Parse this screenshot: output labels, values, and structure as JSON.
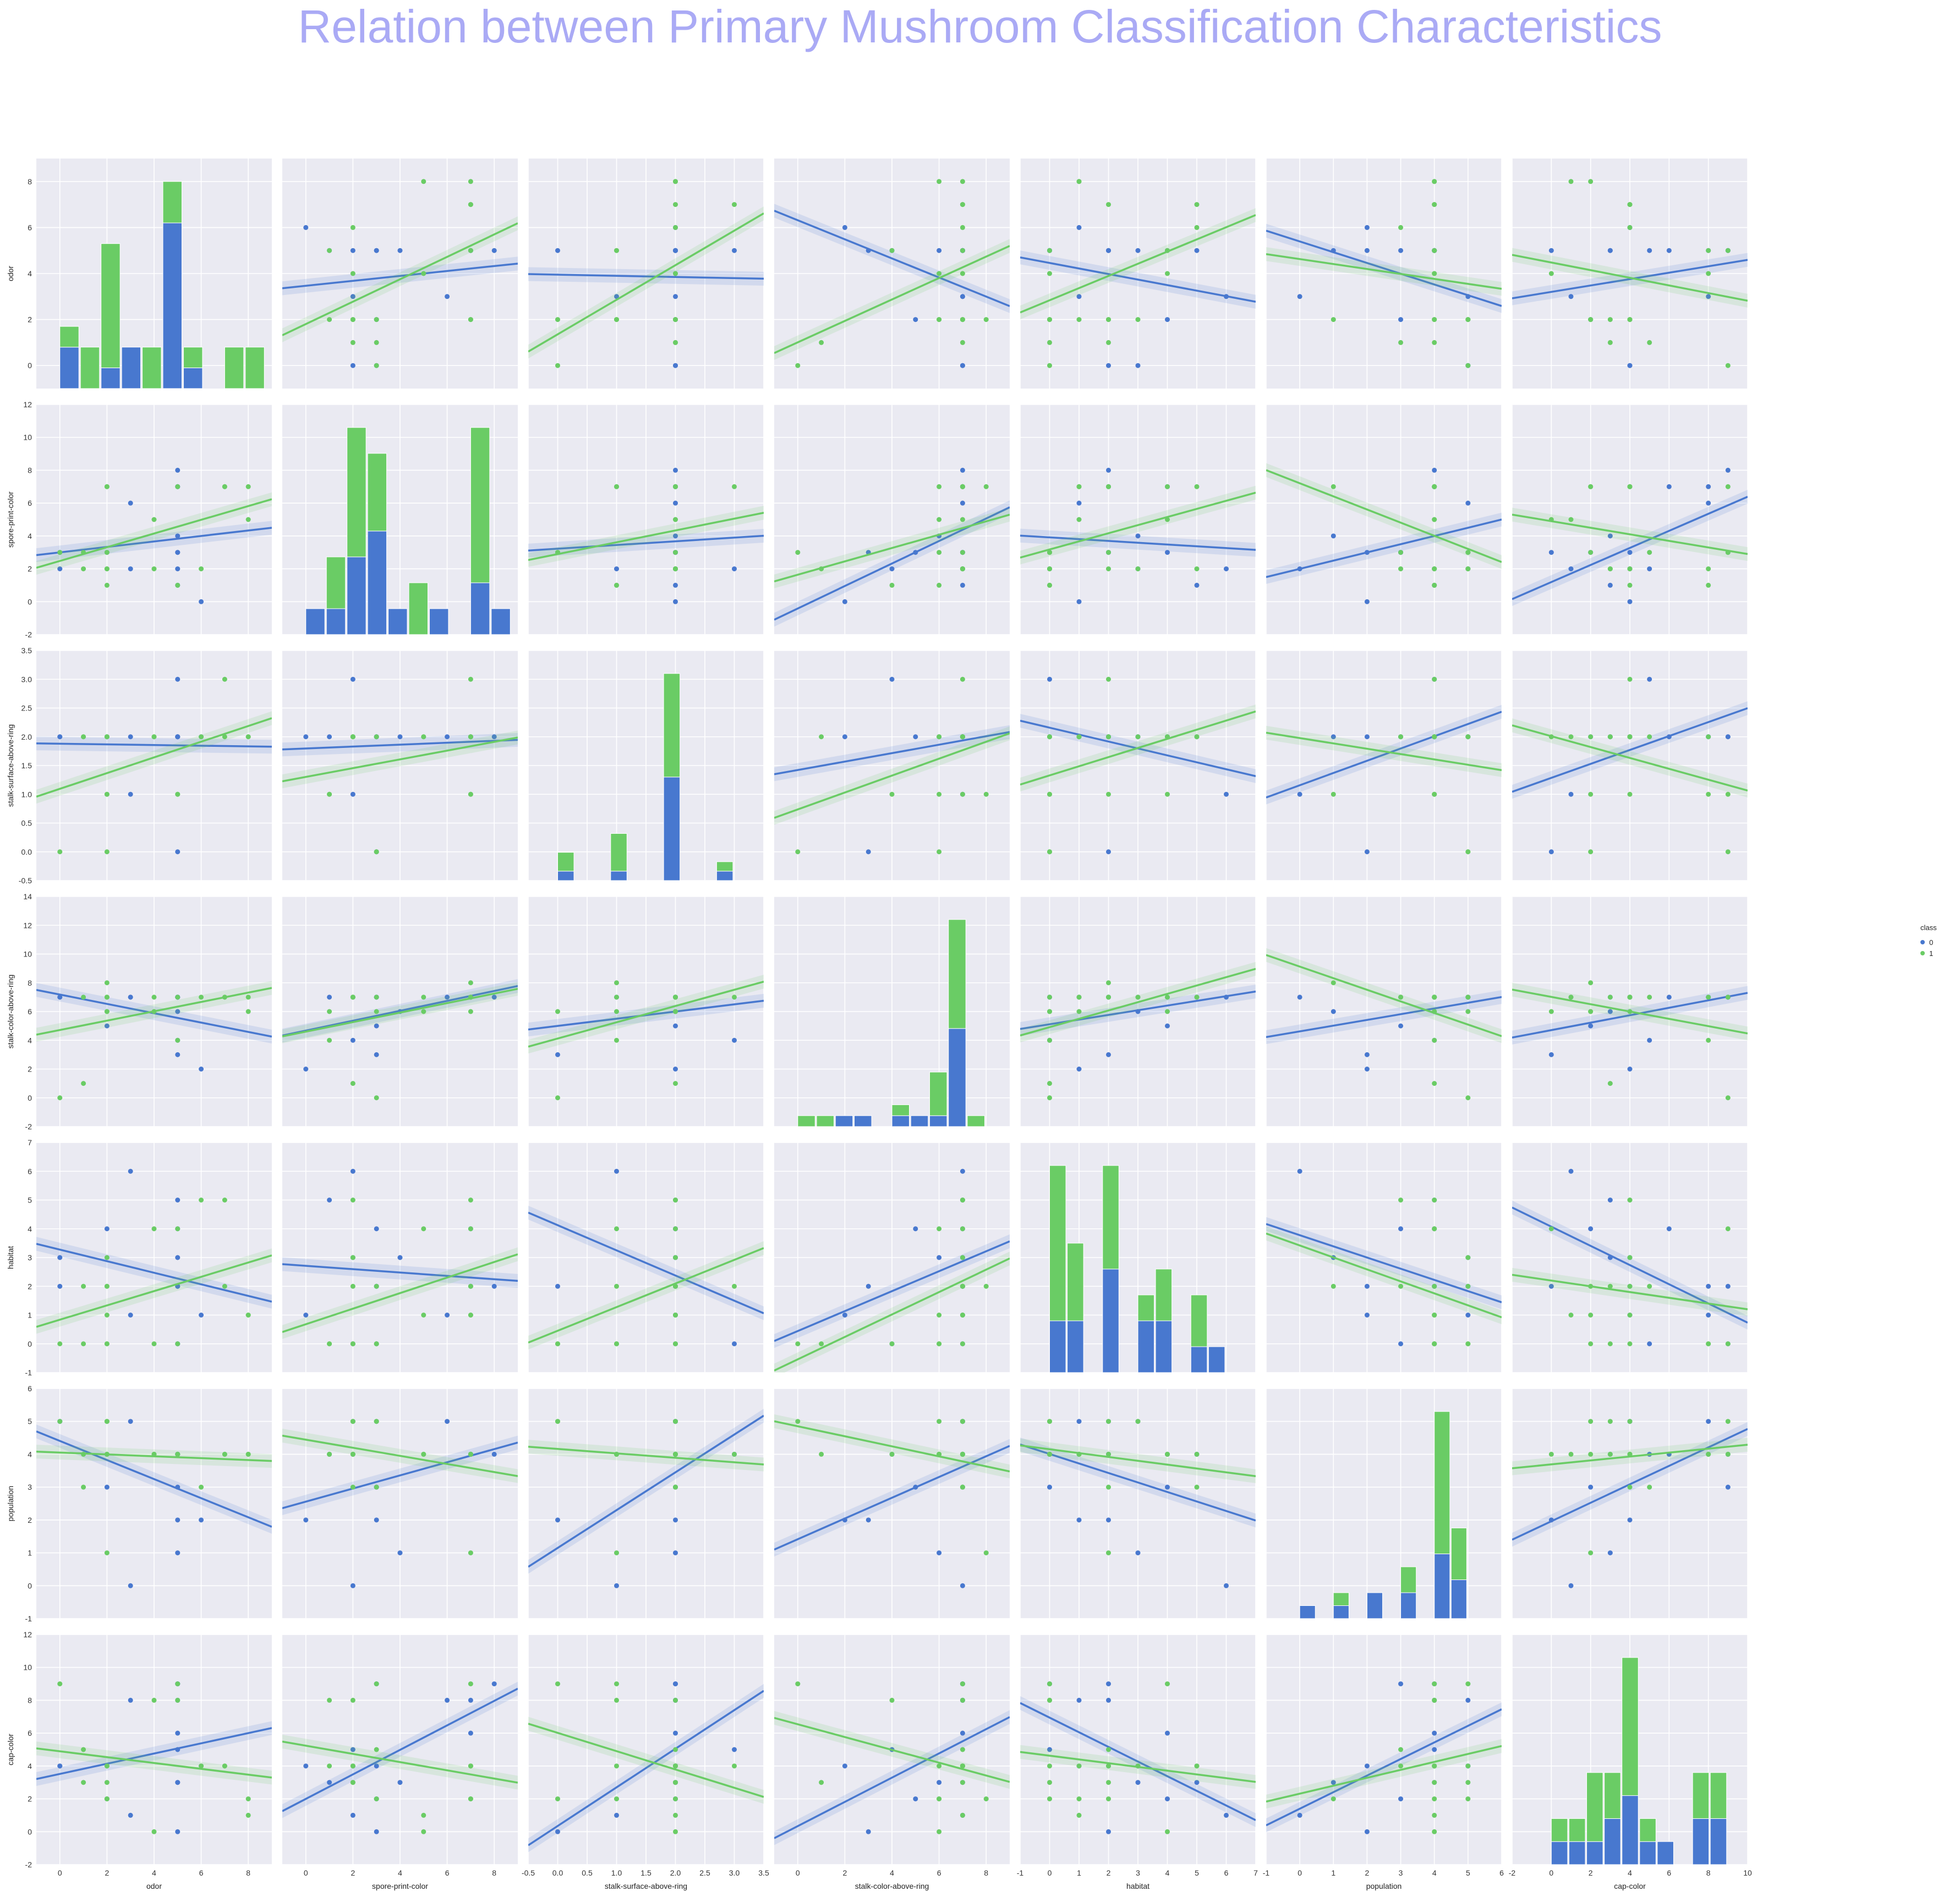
{
  "title": "Relation between Primary Mushroom Classification Characteristics",
  "colors": {
    "class0": "#4878cf",
    "class1": "#6acc65",
    "panel_bg": "#eaeaf2",
    "grid": "#ffffff"
  },
  "chart_data": {
    "type": "scatter",
    "variables": [
      "odor",
      "spore-print-color",
      "stalk-surface-above-ring",
      "stalk-color-above-ring",
      "habitat",
      "population",
      "cap-color"
    ],
    "x_limits": [
      [
        -1,
        9
      ],
      [
        -1,
        9
      ],
      [
        -0.5,
        3.5
      ],
      [
        -1,
        9
      ],
      [
        -1,
        7
      ],
      [
        -1,
        6
      ],
      [
        -2,
        10
      ]
    ],
    "y_limits": [
      [
        -1,
        9
      ],
      [
        -2,
        12
      ],
      [
        -0.5,
        3.5
      ],
      [
        -2,
        14
      ],
      [
        -1,
        7
      ],
      [
        -1,
        6
      ],
      [
        -2,
        12
      ]
    ],
    "x_ticks": [
      [
        "0",
        "2",
        "4",
        "6",
        "8"
      ],
      [
        "0",
        "2",
        "4",
        "6",
        "8"
      ],
      [
        "-0.5",
        "0.0",
        "0.5",
        "1.0",
        "1.5",
        "2.0",
        "2.5",
        "3.0",
        "3.5"
      ],
      [
        "0",
        "2",
        "4",
        "6",
        "8"
      ],
      [
        "-1",
        "0",
        "1",
        "2",
        "3",
        "4",
        "5",
        "6",
        "7"
      ],
      [
        "-1",
        "0",
        "1",
        "2",
        "3",
        "4",
        "5",
        "6"
      ],
      [
        "-2",
        "0",
        "2",
        "4",
        "6",
        "8",
        "10"
      ]
    ],
    "y_ticks": [
      [
        "0",
        "2",
        "4",
        "6",
        "8"
      ],
      [
        "-2",
        "0",
        "2",
        "4",
        "6",
        "8",
        "10",
        "12"
      ],
      [
        "-0.5",
        "0.0",
        "0.5",
        "1.0",
        "1.5",
        "2.0",
        "2.5",
        "3.0",
        "3.5"
      ],
      [
        "-2",
        "0",
        "2",
        "4",
        "6",
        "8",
        "10",
        "12",
        "14"
      ],
      [
        "-1",
        "0",
        "1",
        "2",
        "3",
        "4",
        "5",
        "6",
        "7"
      ],
      [
        "-1",
        "0",
        "1",
        "2",
        "3",
        "4",
        "5",
        "6"
      ],
      [
        "-2",
        "0",
        "2",
        "4",
        "6",
        "8",
        "10",
        "12"
      ]
    ],
    "values": {
      "0": [
        [
          5,
          8,
          2,
          7,
          2,
          4,
          9
        ],
        [
          5,
          7,
          2,
          7,
          2,
          4,
          8
        ],
        [
          5,
          3,
          2,
          7,
          0,
          3,
          9
        ],
        [
          3,
          6,
          2,
          7,
          1,
          5,
          8
        ],
        [
          0,
          2,
          2,
          7,
          3,
          5,
          4
        ],
        [
          2,
          3,
          2,
          5,
          4,
          3,
          2
        ],
        [
          5,
          2,
          3,
          4,
          0,
          4,
          5
        ],
        [
          5,
          3,
          0,
          3,
          2,
          2,
          0
        ],
        [
          5,
          4,
          2,
          6,
          3,
          1,
          3
        ],
        [
          6,
          0,
          2,
          2,
          1,
          2,
          4
        ],
        [
          0,
          3,
          2,
          7,
          2,
          5,
          4
        ],
        [
          5,
          1,
          2,
          7,
          5,
          4,
          3
        ],
        [
          3,
          2,
          1,
          7,
          6,
          0,
          1
        ],
        [
          5,
          7,
          2,
          7,
          4,
          4,
          6
        ]
      ],
      "1": [
        [
          2,
          1,
          1,
          6,
          0,
          4,
          4
        ],
        [
          2,
          2,
          2,
          7,
          2,
          5,
          3
        ],
        [
          8,
          7,
          2,
          6,
          1,
          4,
          2
        ],
        [
          7,
          7,
          3,
          7,
          2,
          4,
          4
        ],
        [
          0,
          3,
          0,
          0,
          0,
          5,
          9
        ],
        [
          4,
          5,
          2,
          6,
          4,
          4,
          0
        ],
        [
          1,
          3,
          2,
          7,
          2,
          3,
          5
        ],
        [
          5,
          1,
          1,
          4,
          0,
          4,
          8
        ],
        [
          2,
          7,
          1,
          8,
          2,
          1,
          2
        ],
        [
          6,
          2,
          2,
          7,
          5,
          3,
          4
        ],
        [
          1,
          2,
          2,
          1,
          0,
          4,
          3
        ],
        [
          5,
          7,
          1,
          7,
          4,
          4,
          9
        ],
        [
          2,
          2,
          2,
          7,
          3,
          5,
          4
        ],
        [
          8,
          5,
          2,
          7,
          1,
          4,
          1
        ],
        [
          2,
          3,
          0,
          6,
          0,
          5,
          2
        ],
        [
          4,
          2,
          2,
          7,
          0,
          4,
          8
        ],
        [
          2,
          7,
          2,
          7,
          1,
          4,
          4
        ],
        [
          7,
          7,
          2,
          7,
          5,
          4,
          4
        ]
      ]
    },
    "hist_bins": [
      [
        0,
        0.875,
        1.75,
        2.625,
        3.5,
        4.375,
        5.25,
        6.125,
        7,
        7.875,
        8.75
      ],
      [
        0,
        0.875,
        1.75,
        2.625,
        3.5,
        4.375,
        5.25,
        6.125,
        7,
        7.875,
        8.75
      ],
      [
        0,
        0.3,
        0.6,
        0.9,
        1.2,
        1.5,
        1.8,
        2.1,
        2.4,
        2.7,
        3.0
      ],
      [
        0,
        0.8,
        1.6,
        2.4,
        3.2,
        4.0,
        4.8,
        5.6,
        6.4,
        7.2,
        8.0
      ],
      [
        0,
        0.6,
        1.2,
        1.8,
        2.4,
        3.0,
        3.6,
        4.2,
        4.8,
        5.4,
        6.0
      ],
      [
        0,
        0.5,
        1.0,
        1.5,
        2.0,
        2.5,
        3.0,
        3.5,
        4.0,
        4.5,
        5.0
      ],
      [
        0,
        0.9,
        1.8,
        2.7,
        3.6,
        4.5,
        5.4,
        6.3,
        7.2,
        8.1,
        9.0
      ]
    ],
    "legend": {
      "title": "class",
      "entries": [
        "0",
        "1"
      ],
      "placement": "right"
    }
  }
}
